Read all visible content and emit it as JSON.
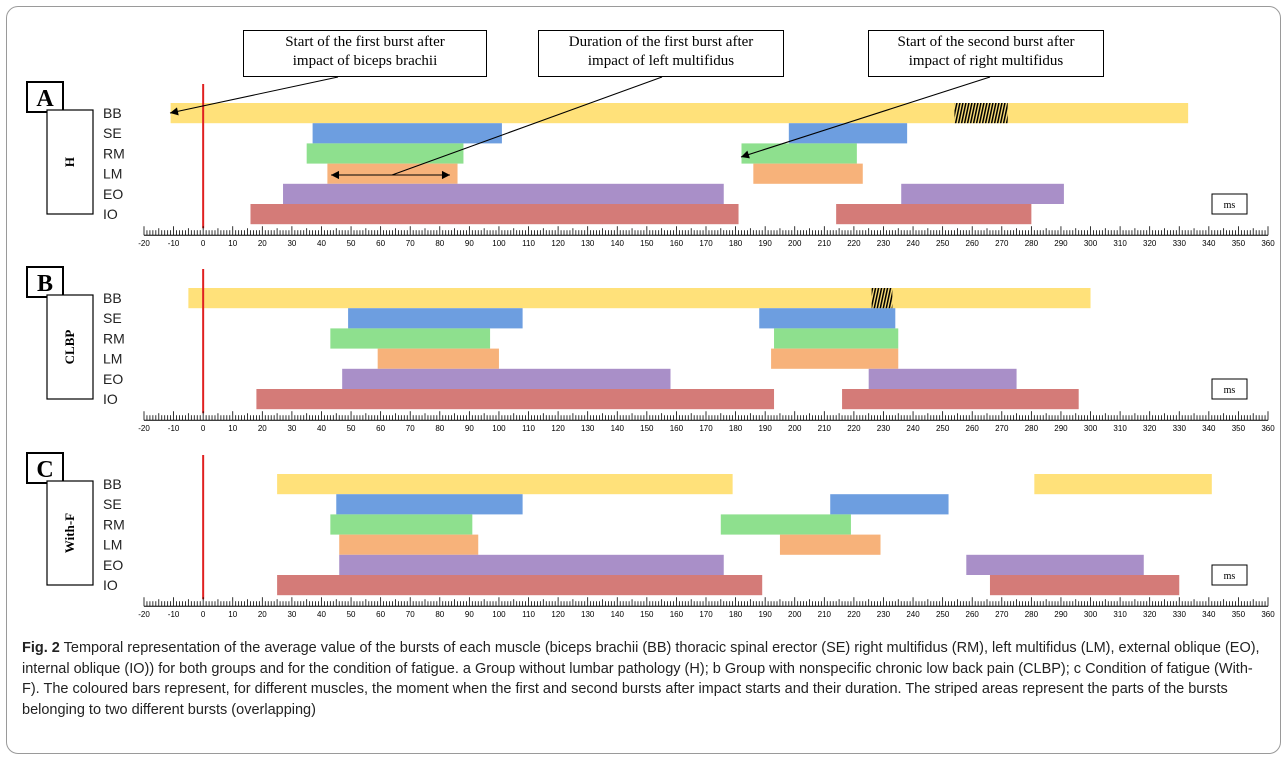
{
  "callouts": [
    {
      "name": "callout-start-first-burst",
      "lines": [
        "Start of the first burst after",
        "impact of biceps brachii"
      ]
    },
    {
      "name": "callout-duration-first-burst",
      "lines": [
        "Duration of the first burst after",
        "impact of left multifidus"
      ]
    },
    {
      "name": "callout-start-second-burst",
      "lines": [
        "Start of the second burst after",
        "impact of right multifidus"
      ]
    }
  ],
  "caption": {
    "figlabel": "Fig. 2",
    "text": " Temporal representation of the average value of the bursts of each muscle (biceps brachii (BB) thoracic spinal erector (SE) right multifidus (RM), left multifidus (LM), external oblique (EO), internal oblique (IO)) for both groups and for the condition of fatigue. a Group without lumbar pathology (H); b Group with nonspecific chronic low back pain (CLBP); c Condition of fatigue (With-F). The coloured bars represent, for different muscles, the moment when the first and second bursts after impact starts and their duration. The striped areas represent the parts of the bursts belonging to two different bursts (overlapping)"
  },
  "colors": {
    "BB": "#ffe17a",
    "SE": "#6d9ee0",
    "RM": "#8ee08e",
    "LM": "#f7b27a",
    "EO": "#a98fc8",
    "IO": "#d47b78",
    "impact_line": "#e02020"
  },
  "chart_data": [
    {
      "type": "bar",
      "panel_letter": "A",
      "group_label": "H",
      "unit_label": "ms",
      "xlim": [
        -20,
        360
      ],
      "x_ticks": [
        -20,
        -10,
        0,
        10,
        20,
        30,
        40,
        50,
        60,
        70,
        80,
        90,
        100,
        110,
        120,
        130,
        140,
        150,
        160,
        170,
        180,
        190,
        200,
        210,
        220,
        230,
        240,
        250,
        260,
        270,
        280,
        290,
        300,
        310,
        320,
        330,
        340,
        350,
        360
      ],
      "muscles": [
        "BB",
        "SE",
        "RM",
        "LM",
        "EO",
        "IO"
      ],
      "bursts": [
        {
          "muscle": "BB",
          "start": -11,
          "end": 333
        },
        {
          "muscle": "SE",
          "start": 37,
          "end": 101
        },
        {
          "muscle": "SE",
          "start": 198,
          "end": 238
        },
        {
          "muscle": "RM",
          "start": 35,
          "end": 88
        },
        {
          "muscle": "RM",
          "start": 182,
          "end": 221
        },
        {
          "muscle": "LM",
          "start": 42,
          "end": 86
        },
        {
          "muscle": "LM",
          "start": 186,
          "end": 223
        },
        {
          "muscle": "EO",
          "start": 27,
          "end": 176
        },
        {
          "muscle": "EO",
          "start": 236,
          "end": 291
        },
        {
          "muscle": "IO",
          "start": 16,
          "end": 181
        },
        {
          "muscle": "IO",
          "start": 214,
          "end": 280
        }
      ],
      "overlaps": [
        {
          "muscle": "BB",
          "start": 254,
          "end": 272
        }
      ]
    },
    {
      "type": "bar",
      "panel_letter": "B",
      "group_label": "CLBP",
      "unit_label": "ms",
      "xlim": [
        -20,
        360
      ],
      "x_ticks": [
        -20,
        -10,
        0,
        10,
        20,
        30,
        40,
        50,
        60,
        70,
        80,
        90,
        100,
        110,
        120,
        130,
        140,
        150,
        160,
        170,
        180,
        190,
        200,
        210,
        220,
        230,
        240,
        250,
        260,
        270,
        280,
        290,
        300,
        310,
        320,
        330,
        340,
        350,
        360
      ],
      "muscles": [
        "BB",
        "SE",
        "RM",
        "LM",
        "EO",
        "IO"
      ],
      "bursts": [
        {
          "muscle": "BB",
          "start": -5,
          "end": 300
        },
        {
          "muscle": "SE",
          "start": 49,
          "end": 108
        },
        {
          "muscle": "SE",
          "start": 188,
          "end": 234
        },
        {
          "muscle": "RM",
          "start": 43,
          "end": 97
        },
        {
          "muscle": "RM",
          "start": 193,
          "end": 235
        },
        {
          "muscle": "LM",
          "start": 59,
          "end": 100
        },
        {
          "muscle": "LM",
          "start": 192,
          "end": 235
        },
        {
          "muscle": "EO",
          "start": 47,
          "end": 158
        },
        {
          "muscle": "EO",
          "start": 225,
          "end": 275
        },
        {
          "muscle": "IO",
          "start": 18,
          "end": 193
        },
        {
          "muscle": "IO",
          "start": 216,
          "end": 296
        }
      ],
      "overlaps": [
        {
          "muscle": "BB",
          "start": 226,
          "end": 233
        }
      ]
    },
    {
      "type": "bar",
      "panel_letter": "C",
      "group_label": "With-F",
      "unit_label": "ms",
      "xlim": [
        -20,
        360
      ],
      "x_ticks": [
        -20,
        -10,
        0,
        10,
        20,
        30,
        40,
        50,
        60,
        70,
        80,
        90,
        100,
        110,
        120,
        130,
        140,
        150,
        160,
        170,
        180,
        190,
        200,
        210,
        220,
        230,
        240,
        250,
        260,
        270,
        280,
        290,
        300,
        310,
        320,
        330,
        340,
        350,
        360
      ],
      "muscles": [
        "BB",
        "SE",
        "RM",
        "LM",
        "EO",
        "IO"
      ],
      "bursts": [
        {
          "muscle": "BB",
          "start": 25,
          "end": 179
        },
        {
          "muscle": "BB",
          "start": 281,
          "end": 341
        },
        {
          "muscle": "SE",
          "start": 45,
          "end": 108
        },
        {
          "muscle": "SE",
          "start": 212,
          "end": 252
        },
        {
          "muscle": "RM",
          "start": 43,
          "end": 91
        },
        {
          "muscle": "RM",
          "start": 175,
          "end": 219
        },
        {
          "muscle": "LM",
          "start": 46,
          "end": 93
        },
        {
          "muscle": "LM",
          "start": 195,
          "end": 229
        },
        {
          "muscle": "EO",
          "start": 46,
          "end": 176
        },
        {
          "muscle": "EO",
          "start": 258,
          "end": 318
        },
        {
          "muscle": "IO",
          "start": 25,
          "end": 189
        },
        {
          "muscle": "IO",
          "start": 266,
          "end": 330
        }
      ],
      "overlaps": []
    }
  ]
}
